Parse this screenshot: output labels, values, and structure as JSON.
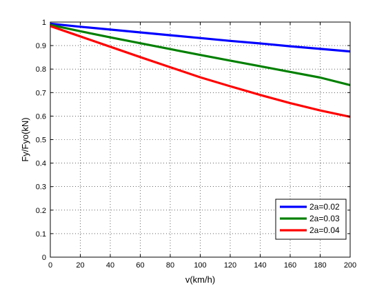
{
  "chart_data": {
    "type": "line",
    "xlabel": "v(km/h)",
    "ylabel": "Fy/Fyo(kN)",
    "xlim": [
      0,
      200
    ],
    "ylim": [
      0,
      1
    ],
    "xticks": [
      0,
      20,
      40,
      60,
      80,
      100,
      120,
      140,
      160,
      180,
      200
    ],
    "yticks": [
      0,
      0.1,
      0.2,
      0.3,
      0.4,
      0.5,
      0.6,
      0.7,
      0.8,
      0.9,
      1
    ],
    "grid": true,
    "grid_style": "dotted",
    "legend_position": "bottom-right",
    "x": [
      0,
      20,
      40,
      60,
      80,
      100,
      120,
      140,
      160,
      180,
      200
    ],
    "series": [
      {
        "name": "2a=0.02",
        "color": "#0000ff",
        "values": [
          0.993,
          0.98,
          0.968,
          0.956,
          0.944,
          0.932,
          0.92,
          0.909,
          0.897,
          0.886,
          0.875
        ]
      },
      {
        "name": "2a=0.03",
        "color": "#008000",
        "values": [
          0.988,
          0.961,
          0.935,
          0.91,
          0.885,
          0.86,
          0.836,
          0.812,
          0.788,
          0.764,
          0.732
        ]
      },
      {
        "name": "2a=0.04",
        "color": "#ff0000",
        "values": [
          0.983,
          0.939,
          0.895,
          0.851,
          0.808,
          0.765,
          0.727,
          0.69,
          0.655,
          0.624,
          0.597
        ]
      }
    ]
  }
}
